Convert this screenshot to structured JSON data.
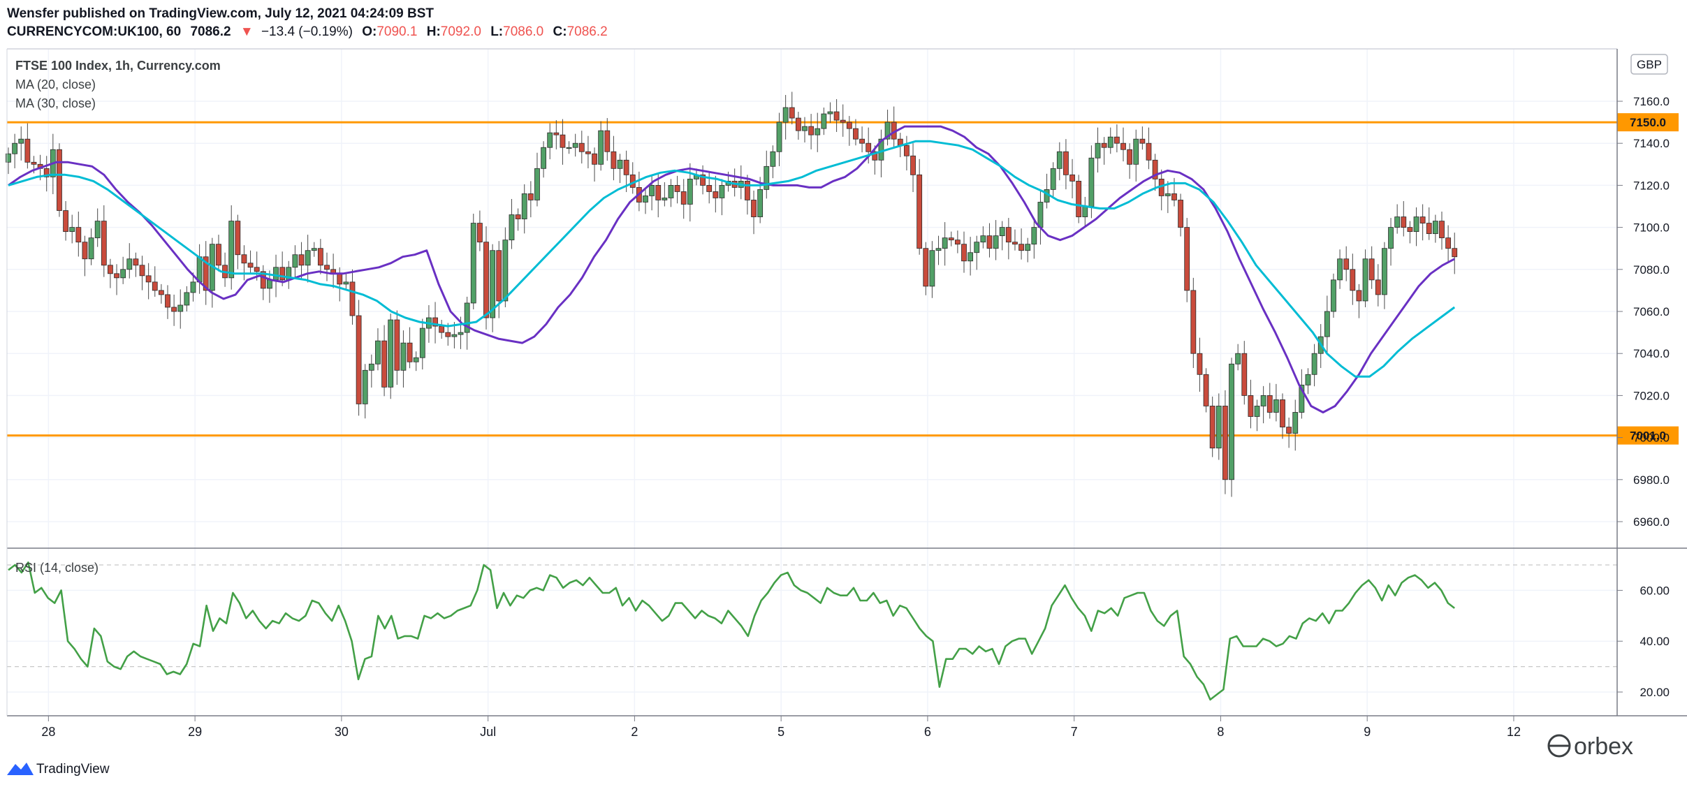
{
  "header": {
    "publisher_line": "Wensfer published on TradingView.com, July 12, 2021 04:24:09 BST",
    "symbol_line": {
      "symbol": "CURRENCYCOM:UK100, 60",
      "price": "7086.2",
      "arrow": "▼",
      "change": "−13.4 (−0.19%)",
      "o_label": "O:",
      "o_value": "7090.1",
      "h_label": "H:",
      "h_value": "7092.0",
      "l_label": "L:",
      "l_value": "7086.0",
      "c_label": "C:",
      "c_value": "7086.2"
    },
    "down_color": "#ef5350"
  },
  "legend": {
    "instrument": "FTSE 100 Index, 1h, Currency.com",
    "ma20": "MA (20, close)",
    "ma30": "MA (30, close)",
    "rsi": "RSI (14, close)"
  },
  "footer": {
    "brand": "TradingView",
    "watermark": "orbex"
  },
  "chart_data": [
    {
      "type": "candlestick",
      "currency": "GBP",
      "ylim": [
        6945,
        7170
      ],
      "y_ticks": [
        6960,
        6980,
        7000,
        7020,
        7040,
        7060,
        7080,
        7100,
        7120,
        7140,
        7160
      ],
      "x_tick_labels": [
        "28",
        "29",
        "30",
        "Jul",
        "2",
        "5",
        "6",
        "7",
        "8",
        "9",
        "12"
      ],
      "x_tick_bar_index": [
        3,
        26,
        49,
        72,
        95,
        118,
        141,
        164,
        187,
        210,
        233
      ],
      "horizontal_lines": [
        {
          "value": 7150.0,
          "label": "7150.0",
          "color": "#ff9800"
        },
        {
          "value": 7001.0,
          "label": "7001.0",
          "color": "#ff9800"
        }
      ],
      "up_color": "#26a69a",
      "up_body_color": "#52a067",
      "down_color": "#c94b3c",
      "close": [
        7135,
        7140,
        7142,
        7131,
        7130,
        7128,
        7124,
        7137,
        7108,
        7098,
        7100,
        7093,
        7085,
        7095,
        7103,
        7082,
        7078,
        7076,
        7080,
        7085,
        7082,
        7077,
        7074,
        7070,
        7068,
        7062,
        7060,
        7063,
        7069,
        7074,
        7086,
        7070,
        7092,
        7082,
        7076,
        7103,
        7087,
        7083,
        7081,
        7079,
        7071,
        7075,
        7081,
        7075,
        7081,
        7087,
        7082,
        7089,
        7090,
        7082,
        7080,
        7078,
        7073,
        7074,
        7058,
        7016,
        7032,
        7035,
        7046,
        7024,
        7056,
        7032,
        7045,
        7036,
        7038,
        7052,
        7057,
        7053,
        7050,
        7048,
        7049,
        7050,
        7064,
        7102,
        7093,
        7057,
        7089,
        7065,
        7094,
        7106,
        7104,
        7116,
        7113,
        7128,
        7138,
        7145,
        7144,
        7138,
        7138,
        7140,
        7136,
        7135,
        7130,
        7146,
        7136,
        7128,
        7132,
        7125,
        7119,
        7112,
        7115,
        7120,
        7113,
        7114,
        7120,
        7117,
        7111,
        7123,
        7125,
        7120,
        7117,
        7114,
        7120,
        7122,
        7119,
        7122,
        7113,
        7105,
        7118,
        7129,
        7136,
        7150,
        7157,
        7152,
        7146,
        7148,
        7144,
        7147,
        7154,
        7155,
        7151,
        7150,
        7147,
        7142,
        7140,
        7136,
        7132,
        7142,
        7150,
        7142,
        7139,
        7134,
        7125,
        7090,
        7072,
        7089,
        7090,
        7095,
        7094,
        7092,
        7084,
        7088,
        7093,
        7096,
        7090,
        7096,
        7100,
        7093,
        7092,
        7089,
        7092,
        7100,
        7112,
        7118,
        7128,
        7136,
        7125,
        7122,
        7105,
        7110,
        7133,
        7140,
        7138,
        7143,
        7140,
        7137,
        7130,
        7142,
        7140,
        7132,
        7123,
        7115,
        7116,
        7113,
        7100,
        7070,
        7040,
        7030,
        7015,
        6995,
        7015,
        6980,
        7035,
        7040,
        7020,
        7010,
        7015,
        7020,
        7012,
        7018,
        7005,
        7002,
        7012,
        7025,
        7030,
        7040,
        7048,
        7060,
        7075,
        7085,
        7080,
        7070,
        7065,
        7085,
        7075,
        7068,
        7090,
        7100,
        7105,
        7100,
        7098,
        7105,
        7102,
        7097,
        7103,
        7095,
        7090,
        7086
      ],
      "series": [
        {
          "name": "MA (20, close)",
          "color": "#6930c3",
          "values": [
            7120,
            7124,
            7127,
            7129,
            7131,
            7131,
            7130,
            7129,
            7125,
            7118,
            7112,
            7107,
            7101,
            7094,
            7087,
            7080,
            7074,
            7069,
            7066,
            7068,
            7075,
            7077,
            7075,
            7074,
            7076,
            7078,
            7079,
            7078,
            7078,
            7079,
            7080,
            7081,
            7083,
            7086,
            7087,
            7089,
            7073,
            7060,
            7054,
            7051,
            7049,
            7047,
            7046,
            7045,
            7048,
            7054,
            7062,
            7068,
            7076,
            7086,
            7094,
            7104,
            7112,
            7117,
            7122,
            7125,
            7127,
            7128,
            7127,
            7126,
            7125,
            7124,
            7123,
            7121,
            7120,
            7120,
            7120,
            7119,
            7119,
            7122,
            7124,
            7128,
            7134,
            7141,
            7145,
            7148,
            7148,
            7148,
            7148,
            7146,
            7143,
            7138,
            7135,
            7129,
            7121,
            7112,
            7102,
            7096,
            7094,
            7096,
            7100,
            7104,
            7109,
            7114,
            7118,
            7122,
            7125,
            7127,
            7126,
            7123,
            7118,
            7109,
            7098,
            7085,
            7073,
            7061,
            7050,
            7038,
            7025,
            7015,
            7012,
            7015,
            7022,
            7030,
            7040,
            7048,
            7056,
            7064,
            7072,
            7078,
            7082,
            7085
          ]
        },
        {
          "name": "MA (30, close)",
          "color": "#00bcd4",
          "values": [
            7120,
            7122,
            7124,
            7125,
            7125,
            7124,
            7122,
            7118,
            7113,
            7108,
            7103,
            7098,
            7093,
            7088,
            7083,
            7079,
            7078,
            7078,
            7078,
            7077,
            7076,
            7075,
            7073,
            7072,
            7070,
            7068,
            7065,
            7060,
            7057,
            7055,
            7054,
            7053,
            7054,
            7055,
            7060,
            7066,
            7073,
            7080,
            7087,
            7094,
            7101,
            7108,
            7114,
            7118,
            7121,
            7124,
            7126,
            7127,
            7126,
            7124,
            7123,
            7121,
            7120,
            7120,
            7121,
            7122,
            7124,
            7127,
            7129,
            7131,
            7133,
            7135,
            7137,
            7139,
            7141,
            7141,
            7140,
            7139,
            7137,
            7133,
            7129,
            7124,
            7120,
            7117,
            7113,
            7111,
            7110,
            7109,
            7109,
            7112,
            7116,
            7119,
            7121,
            7121,
            7118,
            7112,
            7103,
            7093,
            7082,
            7074,
            7066,
            7058,
            7050,
            7040,
            7034,
            7029,
            7029,
            7034,
            7041,
            7047,
            7052,
            7057,
            7062
          ]
        }
      ]
    },
    {
      "type": "line",
      "title": "RSI (14, close)",
      "ylim": [
        12,
        76
      ],
      "y_ticks": [
        20,
        40,
        60
      ],
      "y_tick_labels": [
        "20.00",
        "40.00",
        "60.00"
      ],
      "band": [
        30,
        70
      ],
      "color": "#43a047",
      "values": [
        68,
        70,
        67,
        71,
        59,
        61,
        57,
        55,
        60,
        40,
        37,
        33,
        30,
        45,
        42,
        32,
        30,
        29,
        34,
        36,
        34,
        33,
        32,
        31,
        27,
        28,
        27,
        31,
        39,
        38,
        54,
        44,
        49,
        47,
        59,
        55,
        49,
        52,
        48,
        45,
        48,
        47,
        51,
        49,
        48,
        50,
        56,
        55,
        51,
        48,
        54,
        48,
        40,
        25,
        33,
        34,
        50,
        45,
        50,
        41,
        42,
        42,
        41,
        50,
        49,
        51,
        49,
        50,
        52,
        53,
        54,
        60,
        70,
        68,
        53,
        59,
        54,
        58,
        57,
        60,
        61,
        60,
        66,
        65,
        61,
        63,
        64,
        62,
        65,
        62,
        59,
        59,
        61,
        54,
        57,
        52,
        56,
        54,
        51,
        48,
        50,
        55,
        55,
        52,
        49,
        52,
        50,
        49,
        47,
        52,
        49,
        46,
        42,
        50,
        56,
        59,
        63,
        66,
        67,
        62,
        60,
        59,
        57,
        55,
        61,
        59,
        58,
        58,
        61,
        56,
        56,
        59,
        55,
        56,
        50,
        54,
        53,
        49,
        45,
        42,
        40,
        22,
        33,
        33,
        37,
        37,
        35,
        38,
        36,
        37,
        31,
        38,
        40,
        41,
        41,
        35,
        40,
        45,
        54,
        58,
        62,
        57,
        53,
        50,
        44,
        52,
        51,
        53,
        50,
        57,
        58,
        59,
        59,
        52,
        48,
        46,
        50,
        52,
        34,
        31,
        26,
        23,
        17,
        19,
        21,
        41,
        42,
        38,
        38,
        38,
        41,
        40,
        38,
        39,
        42,
        41,
        47,
        49,
        48,
        51,
        47,
        52,
        52,
        55,
        59,
        62,
        64,
        61,
        56,
        62,
        58,
        63,
        65,
        66,
        64,
        61,
        63,
        60,
        55,
        53
      ]
    }
  ]
}
